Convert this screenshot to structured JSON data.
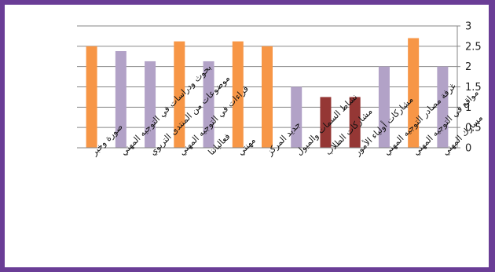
{
  "chart_data": {
    "type": "bar",
    "categories": [
      "مسارك المهني",
      "مواقع في التوجيه المهني",
      "غرفة مصادر التوجيه المهني",
      "مشاركات أولياء الأمور",
      "مشاركات الطلاب",
      "نشاط السمات والميول",
      "جديد المركز",
      "مهنتي",
      "فعالياتنا",
      "قراءات في التوجيه المهني",
      "موضوعات من المنتدى التربوي",
      "بحوث ودراسات في التوجيه المهني",
      "صورة وخبر"
    ],
    "values": [
      2.0,
      2.7,
      2.0,
      1.25,
      1.25,
      1.5,
      2.5,
      2.62,
      2.13,
      2.62,
      2.13,
      2.38,
      2.5
    ],
    "bar_colors": [
      "#b2a2c7",
      "#f79646",
      "#b2a2c7",
      "#953735",
      "#953735",
      "#b2a2c7",
      "#f79646",
      "#f79646",
      "#b2a2c7",
      "#f79646",
      "#b2a2c7",
      "#b2a2c7",
      "#f79646"
    ],
    "ylim": [
      0,
      3
    ],
    "yticks": [
      "0",
      "0.5",
      "1",
      "1.5",
      "2",
      "2.5",
      "3"
    ],
    "ytick_values": [
      0,
      0.5,
      1,
      1.5,
      2,
      2.5,
      3
    ],
    "y_axis_side": "right",
    "grid": true,
    "title": "",
    "xlabel": "",
    "ylabel": ""
  }
}
